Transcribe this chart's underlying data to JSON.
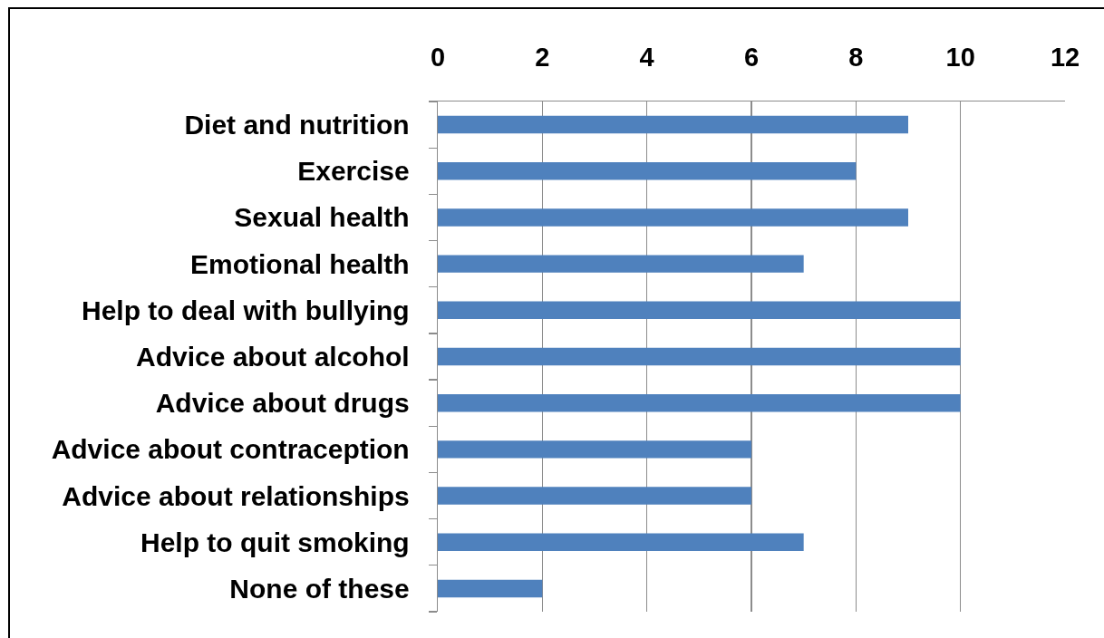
{
  "chart_data": {
    "type": "bar",
    "orientation": "horizontal",
    "categories": [
      "Diet and nutrition",
      "Exercise",
      "Sexual health",
      "Emotional health",
      "Help to deal with bullying",
      "Advice about alcohol",
      "Advice about drugs",
      "Advice about contraception",
      "Advice about relationships",
      "Help to quit smoking",
      "None of these"
    ],
    "values": [
      9,
      8,
      9,
      7,
      10,
      10,
      10,
      6,
      6,
      7,
      2
    ],
    "color": "#4f81bd",
    "xlim": [
      0,
      12
    ],
    "xticks": [
      0,
      2,
      4,
      6,
      8,
      10,
      12
    ],
    "grid": "x"
  }
}
